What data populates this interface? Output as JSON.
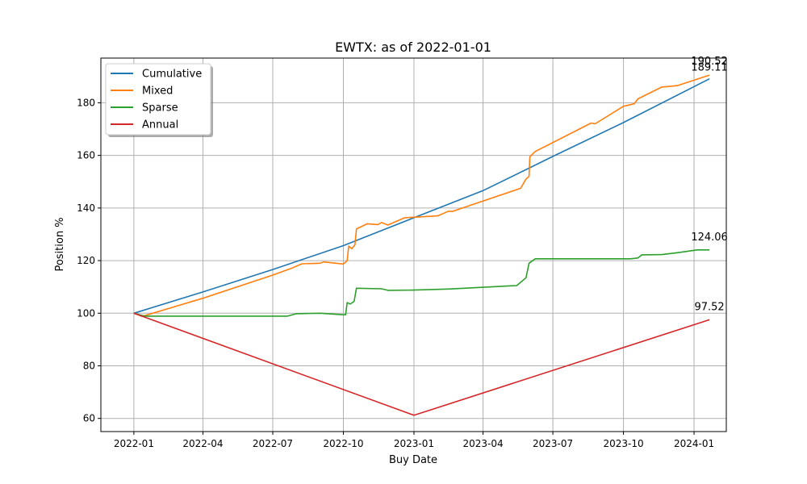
{
  "chart_data": {
    "type": "line",
    "title": "EWTX: as of 2022-01-01",
    "xlabel": "Buy Date",
    "ylabel": "Position %",
    "xlim": [
      "2021-11-19",
      "2024-02-12"
    ],
    "ylim": [
      55,
      197
    ],
    "grid": true,
    "legend_position": "top-left",
    "x_ticks": [
      "2022-01",
      "2022-04",
      "2022-07",
      "2022-10",
      "2023-01",
      "2023-04",
      "2023-07",
      "2023-10",
      "2024-01"
    ],
    "y_ticks": [
      60,
      80,
      100,
      120,
      140,
      160,
      180
    ],
    "series": [
      {
        "name": "Cumulative",
        "color": "#1f77b4",
        "points": [
          [
            "2022-01-01",
            100
          ],
          [
            "2022-04-01",
            108.1
          ],
          [
            "2022-07-01",
            116.6
          ],
          [
            "2022-10-01",
            125.7
          ],
          [
            "2023-01-01",
            136.3
          ],
          [
            "2023-04-01",
            146.6
          ],
          [
            "2023-07-01",
            159.6
          ],
          [
            "2023-10-01",
            172.5
          ],
          [
            "2024-01-21",
            189.11
          ]
        ],
        "end_label": "189.11"
      },
      {
        "name": "Mixed",
        "color": "#ff7f0e",
        "points": [
          [
            "2022-01-01",
            100
          ],
          [
            "2022-01-12",
            98.8
          ],
          [
            "2022-04-01",
            105.7
          ],
          [
            "2022-07-01",
            114.5
          ],
          [
            "2022-07-25",
            117
          ],
          [
            "2022-08-08",
            118.8
          ],
          [
            "2022-09-01",
            119
          ],
          [
            "2022-09-05",
            119.5
          ],
          [
            "2022-10-01",
            118.7
          ],
          [
            "2022-10-06",
            120
          ],
          [
            "2022-10-08",
            125.5
          ],
          [
            "2022-10-12",
            124.5
          ],
          [
            "2022-10-16",
            126
          ],
          [
            "2022-10-18",
            132
          ],
          [
            "2022-11-01",
            134
          ],
          [
            "2022-11-15",
            133.7
          ],
          [
            "2022-11-20",
            134.5
          ],
          [
            "2022-11-28",
            133.5
          ],
          [
            "2022-12-20",
            136.3
          ],
          [
            "2023-01-01",
            136.5
          ],
          [
            "2023-02-01",
            137
          ],
          [
            "2023-02-15",
            138.8
          ],
          [
            "2023-02-20",
            138.7
          ],
          [
            "2023-05-20",
            147.5
          ],
          [
            "2023-05-27",
            151
          ],
          [
            "2023-05-31",
            152
          ],
          [
            "2023-06-01",
            159.5
          ],
          [
            "2023-06-08",
            161.5
          ],
          [
            "2023-08-20",
            172.3
          ],
          [
            "2023-08-25",
            172
          ],
          [
            "2023-10-01",
            178.7
          ],
          [
            "2023-10-15",
            179.6
          ],
          [
            "2023-10-20",
            181.5
          ],
          [
            "2023-11-20",
            186
          ],
          [
            "2023-12-10",
            186.5
          ],
          [
            "2024-01-21",
            190.52
          ]
        ],
        "end_label": "190.52"
      },
      {
        "name": "Sparse",
        "color": "#2ca02c",
        "points": [
          [
            "2022-01-01",
            100
          ],
          [
            "2022-01-15",
            98.9
          ],
          [
            "2022-07-20",
            98.9
          ],
          [
            "2022-08-01",
            99.8
          ],
          [
            "2022-09-01",
            100
          ],
          [
            "2022-10-01",
            99.4
          ],
          [
            "2022-10-04",
            99.4
          ],
          [
            "2022-10-06",
            104
          ],
          [
            "2022-10-10",
            103.5
          ],
          [
            "2022-10-15",
            104.5
          ],
          [
            "2022-10-18",
            109.5
          ],
          [
            "2022-11-20",
            109.3
          ],
          [
            "2022-11-28",
            108.7
          ],
          [
            "2023-01-01",
            108.8
          ],
          [
            "2023-02-15",
            109.2
          ],
          [
            "2023-05-15",
            110.5
          ],
          [
            "2023-05-27",
            113.5
          ],
          [
            "2023-05-31",
            119
          ],
          [
            "2023-06-08",
            120.7
          ],
          [
            "2023-08-20",
            120.7
          ],
          [
            "2023-10-10",
            120.7
          ],
          [
            "2023-10-20",
            121
          ],
          [
            "2023-10-25",
            122.2
          ],
          [
            "2023-11-20",
            122.3
          ],
          [
            "2023-12-10",
            123
          ],
          [
            "2024-01-05",
            124.06
          ],
          [
            "2024-01-21",
            124.06
          ]
        ],
        "end_label": "124.06"
      },
      {
        "name": "Annual",
        "color": "#d62728",
        "points": [
          [
            "2022-01-01",
            100
          ],
          [
            "2023-01-01",
            61.2
          ],
          [
            "2024-01-21",
            97.52
          ]
        ],
        "end_label": "97.52"
      }
    ]
  }
}
